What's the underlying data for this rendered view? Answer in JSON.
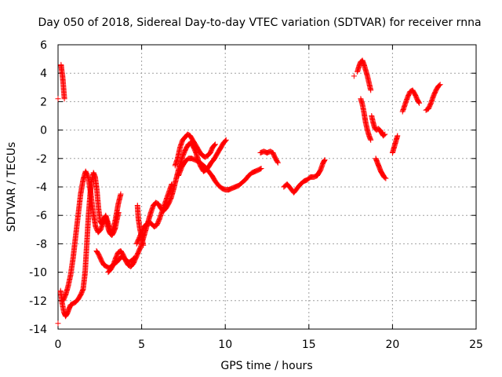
{
  "chart_data": {
    "type": "scatter",
    "title": "Day 050 of 2018, Sidereal Day-to-day VTEC variation (SDTVAR) for receiver rnna",
    "xlabel": "GPS time / hours",
    "ylabel": "SDTVAR / TECUs",
    "xlim": [
      0,
      25
    ],
    "ylim": [
      -14,
      6
    ],
    "xticks": [
      0,
      5,
      10,
      15,
      20,
      25
    ],
    "yticks": [
      -14,
      -12,
      -10,
      -8,
      -6,
      -4,
      -2,
      0,
      2,
      4,
      6
    ],
    "grid": true,
    "legend": "none",
    "marker": "plus",
    "color": "#ff0000",
    "segments": [
      [
        [
          0.0,
          -13.6
        ]
      ],
      [
        [
          0.0,
          2.2
        ]
      ],
      [
        [
          0.18,
          4.6
        ],
        [
          0.22,
          4.2
        ],
        [
          0.26,
          3.9
        ],
        [
          0.3,
          3.4
        ],
        [
          0.34,
          2.8
        ],
        [
          0.38,
          2.2
        ]
      ],
      [
        [
          0.15,
          -11.3
        ],
        [
          0.25,
          -12.2
        ],
        [
          0.35,
          -12.8
        ],
        [
          0.45,
          -13.1
        ],
        [
          0.55,
          -12.9
        ],
        [
          0.65,
          -12.6
        ],
        [
          0.75,
          -12.3
        ],
        [
          0.9,
          -12.2
        ],
        [
          1.05,
          -12.1
        ],
        [
          1.2,
          -11.9
        ],
        [
          1.35,
          -11.6
        ],
        [
          1.5,
          -11.2
        ],
        [
          1.62,
          -10.0
        ],
        [
          1.72,
          -8.0
        ],
        [
          1.82,
          -6.0
        ],
        [
          1.92,
          -4.5
        ],
        [
          2.02,
          -3.5
        ],
        [
          2.12,
          -3.0
        ],
        [
          2.22,
          -3.3
        ],
        [
          2.32,
          -4.2
        ],
        [
          2.42,
          -5.5
        ],
        [
          2.52,
          -6.4
        ],
        [
          2.62,
          -6.6
        ],
        [
          2.72,
          -6.3
        ],
        [
          2.82,
          -6.1
        ],
        [
          2.92,
          -6.5
        ],
        [
          3.02,
          -7.0
        ],
        [
          3.12,
          -7.3
        ],
        [
          3.22,
          -7.4
        ],
        [
          3.32,
          -7.2
        ],
        [
          3.42,
          -6.9
        ],
        [
          3.52,
          -6.3
        ],
        [
          3.62,
          -5.8
        ]
      ],
      [
        [
          0.3,
          -12.0
        ],
        [
          0.45,
          -11.6
        ],
        [
          0.6,
          -11.0
        ],
        [
          0.75,
          -10.2
        ],
        [
          0.9,
          -9.0
        ],
        [
          1.05,
          -7.5
        ],
        [
          1.2,
          -6.0
        ],
        [
          1.35,
          -4.5
        ],
        [
          1.5,
          -3.5
        ],
        [
          1.65,
          -2.9
        ],
        [
          1.8,
          -3.3
        ],
        [
          1.95,
          -4.4
        ],
        [
          2.1,
          -5.8
        ],
        [
          2.25,
          -6.8
        ],
        [
          2.4,
          -7.2
        ],
        [
          2.55,
          -7.0
        ],
        [
          2.7,
          -6.5
        ],
        [
          2.85,
          -6.0
        ],
        [
          3.0,
          -6.6
        ],
        [
          3.15,
          -7.2
        ],
        [
          3.3,
          -7.0
        ],
        [
          3.45,
          -6.2
        ],
        [
          3.6,
          -5.2
        ],
        [
          3.75,
          -4.5
        ]
      ],
      [
        [
          3.0,
          -10.0
        ],
        [
          3.15,
          -9.8
        ],
        [
          3.3,
          -9.5
        ],
        [
          3.45,
          -9.0
        ],
        [
          3.6,
          -8.6
        ],
        [
          3.75,
          -8.5
        ],
        [
          3.9,
          -8.8
        ],
        [
          4.05,
          -9.2
        ],
        [
          4.2,
          -9.5
        ],
        [
          4.35,
          -9.6
        ],
        [
          4.5,
          -9.4
        ],
        [
          4.65,
          -9.0
        ],
        [
          4.8,
          -8.6
        ],
        [
          4.95,
          -8.2
        ],
        [
          5.1,
          -7.6
        ],
        [
          5.25,
          -7.0
        ],
        [
          5.4,
          -6.4
        ],
        [
          5.55,
          -5.8
        ],
        [
          5.7,
          -5.3
        ],
        [
          5.85,
          -5.1
        ],
        [
          6.0,
          -5.2
        ],
        [
          6.15,
          -5.5
        ],
        [
          6.3,
          -5.7
        ],
        [
          6.45,
          -5.5
        ],
        [
          6.6,
          -5.2
        ],
        [
          6.75,
          -4.8
        ],
        [
          6.9,
          -4.2
        ],
        [
          7.05,
          -3.5
        ],
        [
          7.2,
          -2.8
        ],
        [
          7.35,
          -2.2
        ],
        [
          7.5,
          -1.7
        ],
        [
          7.65,
          -1.3
        ],
        [
          7.8,
          -1.0
        ],
        [
          7.95,
          -0.9
        ],
        [
          8.1,
          -1.2
        ],
        [
          8.25,
          -1.6
        ],
        [
          8.4,
          -2.2
        ],
        [
          8.55,
          -2.6
        ],
        [
          8.7,
          -2.9
        ],
        [
          8.85,
          -2.8
        ],
        [
          9.0,
          -2.6
        ],
        [
          9.15,
          -2.3
        ],
        [
          9.3,
          -2.1
        ],
        [
          9.45,
          -1.8
        ],
        [
          9.6,
          -1.5
        ],
        [
          9.75,
          -1.2
        ],
        [
          9.9,
          -0.9
        ],
        [
          10.05,
          -0.7
        ]
      ],
      [
        [
          2.3,
          -8.5
        ],
        [
          2.45,
          -8.8
        ],
        [
          2.6,
          -9.2
        ],
        [
          2.75,
          -9.5
        ],
        [
          2.9,
          -9.6
        ],
        [
          3.05,
          -9.7
        ],
        [
          3.2,
          -9.6
        ],
        [
          3.35,
          -9.4
        ],
        [
          3.5,
          -9.3
        ],
        [
          3.65,
          -9.1
        ],
        [
          3.8,
          -8.9
        ],
        [
          3.95,
          -9.0
        ],
        [
          4.1,
          -9.2
        ],
        [
          4.25,
          -9.3
        ],
        [
          4.4,
          -9.2
        ],
        [
          4.55,
          -9.0
        ]
      ],
      [
        [
          4.7,
          -8.0
        ],
        [
          4.85,
          -7.6
        ],
        [
          5.0,
          -7.2
        ],
        [
          5.15,
          -6.8
        ],
        [
          5.3,
          -6.6
        ],
        [
          5.45,
          -6.5
        ],
        [
          5.6,
          -6.6
        ],
        [
          5.75,
          -6.8
        ],
        [
          5.9,
          -6.7
        ],
        [
          6.05,
          -6.3
        ],
        [
          6.2,
          -5.8
        ],
        [
          6.35,
          -5.3
        ],
        [
          6.5,
          -4.8
        ],
        [
          6.65,
          -4.3
        ],
        [
          6.8,
          -3.8
        ]
      ],
      [
        [
          4.75,
          -5.3
        ],
        [
          4.8,
          -6.2
        ],
        [
          4.9,
          -7.0
        ],
        [
          5.0,
          -7.5
        ],
        [
          5.05,
          -7.8
        ],
        [
          5.1,
          -8.1
        ]
      ],
      [
        [
          7.0,
          -2.5
        ],
        [
          7.15,
          -2.0
        ],
        [
          7.3,
          -1.2
        ],
        [
          7.45,
          -0.7
        ],
        [
          7.6,
          -0.5
        ],
        [
          7.75,
          -0.3
        ],
        [
          7.9,
          -0.4
        ],
        [
          8.05,
          -0.7
        ],
        [
          8.2,
          -1.0
        ],
        [
          8.35,
          -1.3
        ],
        [
          8.5,
          -1.6
        ],
        [
          8.65,
          -1.8
        ],
        [
          8.8,
          -1.9
        ],
        [
          8.95,
          -1.8
        ],
        [
          9.1,
          -1.6
        ],
        [
          9.25,
          -1.2
        ],
        [
          9.4,
          -1.0
        ]
      ],
      [
        [
          7.2,
          -3.2
        ],
        [
          7.4,
          -2.6
        ],
        [
          7.6,
          -2.2
        ],
        [
          7.8,
          -2.0
        ],
        [
          8.0,
          -2.0
        ],
        [
          8.2,
          -2.1
        ],
        [
          8.4,
          -2.2
        ],
        [
          8.6,
          -2.4
        ],
        [
          8.8,
          -2.6
        ],
        [
          9.0,
          -2.9
        ],
        [
          9.2,
          -3.2
        ],
        [
          9.4,
          -3.6
        ],
        [
          9.6,
          -3.9
        ],
        [
          9.8,
          -4.1
        ],
        [
          10.0,
          -4.2
        ],
        [
          10.2,
          -4.2
        ],
        [
          10.4,
          -4.1
        ],
        [
          10.6,
          -4.0
        ],
        [
          10.8,
          -3.9
        ],
        [
          11.0,
          -3.7
        ],
        [
          11.2,
          -3.5
        ],
        [
          11.4,
          -3.2
        ],
        [
          11.6,
          -3.0
        ],
        [
          11.8,
          -2.9
        ],
        [
          12.0,
          -2.8
        ],
        [
          12.15,
          -2.7
        ]
      ],
      [
        [
          12.1,
          -1.6
        ],
        [
          12.3,
          -1.5
        ],
        [
          12.5,
          -1.6
        ],
        [
          12.7,
          -1.5
        ],
        [
          12.85,
          -1.6
        ],
        [
          13.0,
          -2.0
        ],
        [
          13.15,
          -2.3
        ]
      ],
      [
        [
          13.5,
          -4.0
        ],
        [
          13.7,
          -3.8
        ],
        [
          13.9,
          -4.1
        ],
        [
          14.1,
          -4.4
        ],
        [
          14.3,
          -4.1
        ],
        [
          14.5,
          -3.8
        ],
        [
          14.7,
          -3.6
        ],
        [
          14.9,
          -3.5
        ],
        [
          15.1,
          -3.3
        ],
        [
          15.3,
          -3.3
        ],
        [
          15.5,
          -3.2
        ],
        [
          15.7,
          -2.8
        ],
        [
          15.85,
          -2.3
        ],
        [
          15.95,
          -2.1
        ]
      ],
      [
        [
          17.7,
          3.8
        ]
      ],
      [
        [
          17.9,
          4.1
        ],
        [
          18.0,
          4.5
        ],
        [
          18.1,
          4.8
        ],
        [
          18.2,
          4.9
        ],
        [
          18.3,
          4.6
        ],
        [
          18.4,
          4.2
        ],
        [
          18.5,
          3.8
        ],
        [
          18.6,
          3.3
        ],
        [
          18.7,
          2.8
        ]
      ],
      [
        [
          18.1,
          2.2
        ],
        [
          18.2,
          1.8
        ],
        [
          18.3,
          1.2
        ],
        [
          18.4,
          0.5
        ],
        [
          18.5,
          0.0
        ],
        [
          18.6,
          -0.4
        ],
        [
          18.7,
          -0.7
        ]
      ],
      [
        [
          18.75,
          1.0
        ],
        [
          18.85,
          0.5
        ],
        [
          18.95,
          0.1
        ],
        [
          19.05,
          0.0
        ],
        [
          19.15,
          0.1
        ],
        [
          19.25,
          0.0
        ],
        [
          19.35,
          -0.2
        ],
        [
          19.45,
          -0.4
        ],
        [
          19.55,
          -0.3
        ]
      ],
      [
        [
          19.0,
          -2.0
        ],
        [
          19.1,
          -2.3
        ],
        [
          19.2,
          -2.6
        ],
        [
          19.3,
          -2.9
        ],
        [
          19.4,
          -3.1
        ],
        [
          19.5,
          -3.3
        ],
        [
          19.6,
          -3.4
        ]
      ],
      [
        [
          20.0,
          -1.6
        ],
        [
          20.1,
          -1.2
        ],
        [
          20.2,
          -0.8
        ],
        [
          20.3,
          -0.4
        ]
      ],
      [
        [
          20.6,
          1.3
        ],
        [
          20.75,
          1.8
        ],
        [
          20.9,
          2.3
        ],
        [
          21.05,
          2.7
        ],
        [
          21.2,
          2.8
        ],
        [
          21.35,
          2.5
        ],
        [
          21.5,
          2.1
        ],
        [
          21.6,
          1.9
        ]
      ],
      [
        [
          22.0,
          1.4
        ],
        [
          22.15,
          1.5
        ],
        [
          22.3,
          1.9
        ],
        [
          22.45,
          2.4
        ],
        [
          22.6,
          2.8
        ],
        [
          22.75,
          3.1
        ],
        [
          22.85,
          3.2
        ]
      ]
    ]
  }
}
